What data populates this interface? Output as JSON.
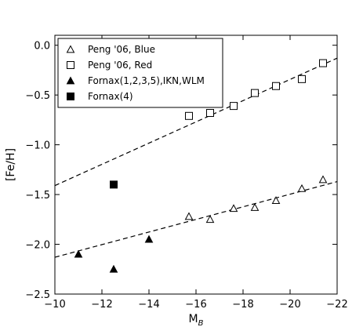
{
  "chart_data": {
    "type": "scatter",
    "xlabel": "M",
    "xlabel_sub": "B",
    "ylabel": "[Fe/H]",
    "xlim": [
      -10,
      -22
    ],
    "ylim": [
      -2.5,
      0.1
    ],
    "x_ticks": [
      -10,
      -12,
      -14,
      -16,
      -18,
      -20,
      -22
    ],
    "x_tick_labels": [
      "−10",
      "−12",
      "−14",
      "−16",
      "−18",
      "−20",
      "−22"
    ],
    "y_ticks": [
      0.0,
      -0.5,
      -1.0,
      -1.5,
      -2.0,
      -2.5
    ],
    "y_tick_labels": [
      "0.0",
      "−0.5",
      "−1.0",
      "−1.5",
      "−2.0",
      "−2.5"
    ],
    "legend_position": "top-left",
    "grid": false,
    "series": [
      {
        "name": "Peng '06, Blue",
        "marker": "open-triangle",
        "points": [
          {
            "x": -15.7,
            "y": -1.72
          },
          {
            "x": -16.6,
            "y": -1.75
          },
          {
            "x": -17.6,
            "y": -1.64
          },
          {
            "x": -18.5,
            "y": -1.63
          },
          {
            "x": -19.4,
            "y": -1.56
          },
          {
            "x": -20.5,
            "y": -1.44
          },
          {
            "x": -21.4,
            "y": -1.35
          }
        ]
      },
      {
        "name": "Peng '06, Red",
        "marker": "open-square",
        "points": [
          {
            "x": -15.7,
            "y": -0.71
          },
          {
            "x": -16.6,
            "y": -0.68
          },
          {
            "x": -17.6,
            "y": -0.61
          },
          {
            "x": -18.5,
            "y": -0.48
          },
          {
            "x": -19.4,
            "y": -0.41
          },
          {
            "x": -20.5,
            "y": -0.34
          },
          {
            "x": -21.4,
            "y": -0.18
          }
        ]
      },
      {
        "name": "Fornax(1,2,3,5),IKN,WLM",
        "marker": "filled-triangle",
        "points": [
          {
            "x": -11.0,
            "y": -2.1
          },
          {
            "x": -12.5,
            "y": -2.25
          },
          {
            "x": -14.0,
            "y": -1.95
          }
        ]
      },
      {
        "name": "Fornax(4)",
        "marker": "filled-square",
        "points": [
          {
            "x": -12.5,
            "y": -1.4
          }
        ]
      }
    ],
    "fit_lines": [
      {
        "x": [
          -10,
          -22
        ],
        "y": [
          -1.41,
          -0.13
        ]
      },
      {
        "x": [
          -10,
          -22
        ],
        "y": [
          -2.13,
          -1.37
        ]
      }
    ]
  }
}
